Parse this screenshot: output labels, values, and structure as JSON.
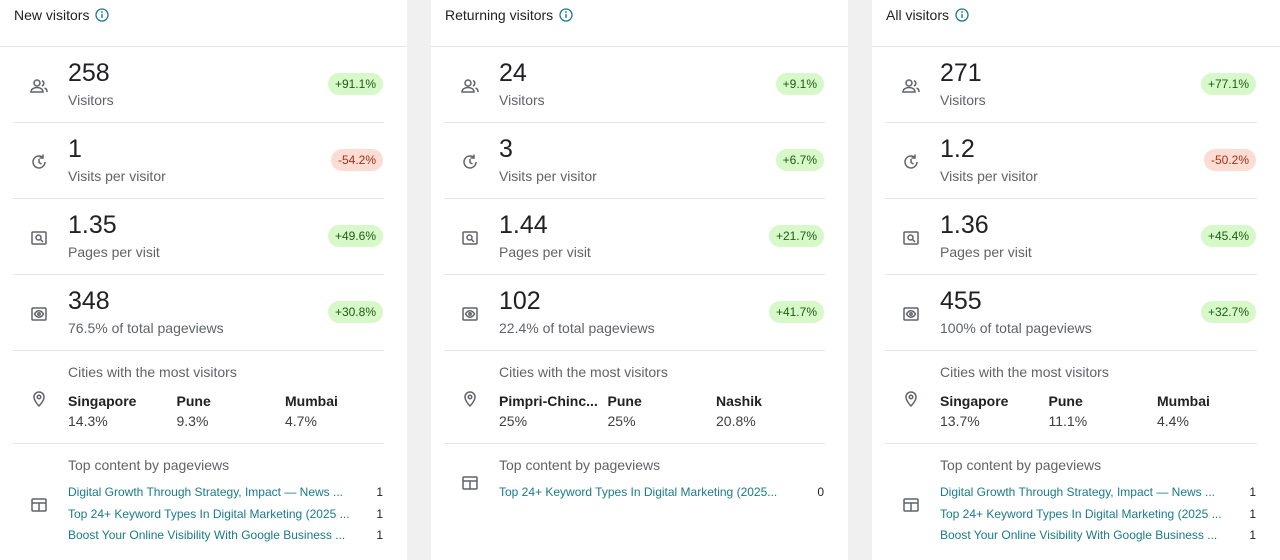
{
  "panels": [
    {
      "title": "New visitors",
      "metrics": [
        {
          "value": "258",
          "label": "Visitors",
          "change": "+91.1%"
        },
        {
          "value": "1",
          "label": "Visits per visitor",
          "change": "-54.2%"
        },
        {
          "value": "1.35",
          "label": "Pages per visit",
          "change": "+49.6%"
        },
        {
          "value": "348",
          "label": "76.5% of total pageviews",
          "change": "+30.8%"
        }
      ],
      "cities_title": "Cities with the most visitors",
      "cities": [
        {
          "name": "Singapore",
          "share": "14.3%"
        },
        {
          "name": "Pune",
          "share": "9.3%"
        },
        {
          "name": "Mumbai",
          "share": "4.7%"
        }
      ],
      "content_title": "Top content by pageviews",
      "content": [
        {
          "title": "Digital Growth Through Strategy, Impact — News ...",
          "count": "1"
        },
        {
          "title": "Top 24+ Keyword Types In Digital Marketing (2025 ...",
          "count": "1"
        },
        {
          "title": "Boost Your Online Visibility With Google Business ...",
          "count": "1"
        }
      ]
    },
    {
      "title": "Returning visitors",
      "metrics": [
        {
          "value": "24",
          "label": "Visitors",
          "change": "+9.1%"
        },
        {
          "value": "3",
          "label": "Visits per visitor",
          "change": "+6.7%"
        },
        {
          "value": "1.44",
          "label": "Pages per visit",
          "change": "+21.7%"
        },
        {
          "value": "102",
          "label": "22.4% of total pageviews",
          "change": "+41.7%"
        }
      ],
      "cities_title": "Cities with the most visitors",
      "cities": [
        {
          "name": "Pimpri-Chinc...",
          "share": "25%"
        },
        {
          "name": "Pune",
          "share": "25%"
        },
        {
          "name": "Nashik",
          "share": "20.8%"
        }
      ],
      "content_title": "Top content by pageviews",
      "content": [
        {
          "title": "Top 24+ Keyword Types In Digital Marketing (2025...",
          "count": "0"
        }
      ]
    },
    {
      "title": "All visitors",
      "metrics": [
        {
          "value": "271",
          "label": "Visitors",
          "change": "+77.1%"
        },
        {
          "value": "1.2",
          "label": "Visits per visitor",
          "change": "-50.2%"
        },
        {
          "value": "1.36",
          "label": "Pages per visit",
          "change": "+45.4%"
        },
        {
          "value": "455",
          "label": "100% of total pageviews",
          "change": "+32.7%"
        }
      ],
      "cities_title": "Cities with the most visitors",
      "cities": [
        {
          "name": "Singapore",
          "share": "13.7%"
        },
        {
          "name": "Pune",
          "share": "11.1%"
        },
        {
          "name": "Mumbai",
          "share": "4.4%"
        }
      ],
      "content_title": "Top content by pageviews",
      "content": [
        {
          "title": "Digital Growth Through Strategy, Impact — News ...",
          "count": "1"
        },
        {
          "title": "Top 24+ Keyword Types In Digital Marketing (2025 ...",
          "count": "1"
        },
        {
          "title": "Boost Your Online Visibility With Google Business ...",
          "count": "1"
        }
      ]
    }
  ]
}
